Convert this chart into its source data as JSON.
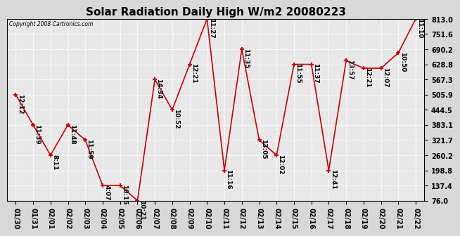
{
  "title": "Solar Radiation Daily High W/m2 20080223",
  "copyright": "Copyright 2008 Cartronics.com",
  "dates": [
    "01/30",
    "01/31",
    "02/01",
    "02/02",
    "02/03",
    "02/04",
    "02/05",
    "02/06",
    "02/07",
    "02/08",
    "02/09",
    "02/10",
    "02/11",
    "02/12",
    "02/13",
    "02/14",
    "02/15",
    "02/16",
    "02/17",
    "02/18",
    "02/19",
    "02/20",
    "02/21",
    "02/22"
  ],
  "values": [
    505.9,
    383.1,
    260.2,
    383.1,
    321.7,
    137.4,
    137.4,
    76.0,
    567.3,
    444.5,
    628.8,
    813.0,
    198.8,
    690.2,
    321.7,
    260.2,
    628.8,
    628.8,
    198.8,
    644.0,
    613.0,
    613.0,
    675.0,
    813.0
  ],
  "time_labels": [
    "12:12",
    "11:39",
    "8:11",
    "11:48",
    "11:59",
    "4:07",
    "10:15",
    "10:21",
    "14:34",
    "10:52",
    "12:21",
    "11:27",
    "11:16",
    "11:35",
    "13:05",
    "12:02",
    "11:55",
    "11:37",
    "12:41",
    "13:57",
    "12:21",
    "12:07",
    "10:50",
    "11:10"
  ],
  "y_ticks": [
    76.0,
    137.4,
    198.8,
    260.2,
    321.7,
    383.1,
    444.5,
    505.9,
    567.3,
    628.8,
    690.2,
    751.6,
    813.0
  ],
  "line_color": "#cc0000",
  "marker_color": "#cc0000",
  "bg_color": "#d8d8d8",
  "plot_bg_color": "#e8e8e8",
  "grid_color": "#ffffff",
  "title_fontsize": 11,
  "tick_fontsize": 7,
  "label_fontsize": 6.5
}
